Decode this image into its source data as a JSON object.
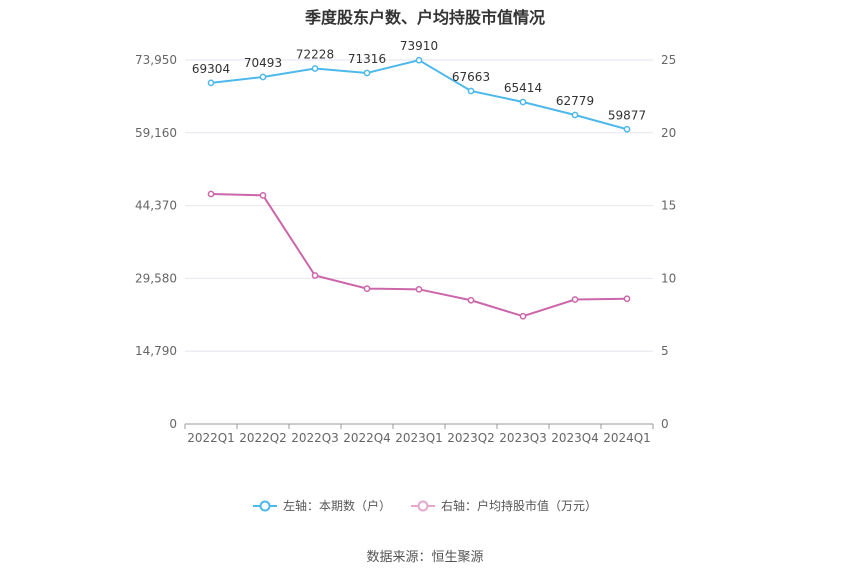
{
  "title": "季度股东户数、户均持股市值情况",
  "source": "数据来源：恒生聚源",
  "colors": {
    "left_series": "#4db8ea",
    "right_series": "#cc66aa",
    "grid": "#e6e6ee",
    "axis_text": "#666666"
  },
  "chart_data": {
    "type": "line",
    "categories": [
      "2022Q1",
      "2022Q2",
      "2022Q3",
      "2022Q4",
      "2023Q1",
      "2023Q2",
      "2023Q3",
      "2023Q4",
      "2024Q1"
    ],
    "left_axis": {
      "ticks": [
        "0",
        "14,790",
        "29,580",
        "44,370",
        "59,160",
        "73,950"
      ],
      "ylim": [
        0,
        73950
      ]
    },
    "right_axis": {
      "ticks": [
        "0",
        "5",
        "10",
        "15",
        "20",
        "25"
      ],
      "ylim": [
        0,
        25
      ]
    },
    "series": [
      {
        "name": "左轴：本期数（户）",
        "axis": "left",
        "values": [
          69304,
          70493,
          72228,
          71316,
          73910,
          67663,
          65414,
          62779,
          59877
        ],
        "show_labels": true
      },
      {
        "name": "右轴：户均持股市值（万元）",
        "axis": "right",
        "values": [
          15.8,
          15.7,
          10.2,
          9.3,
          9.25,
          8.5,
          7.4,
          8.55,
          8.6
        ],
        "show_labels": false
      }
    ],
    "grid": true,
    "legend": "bottom-center"
  }
}
